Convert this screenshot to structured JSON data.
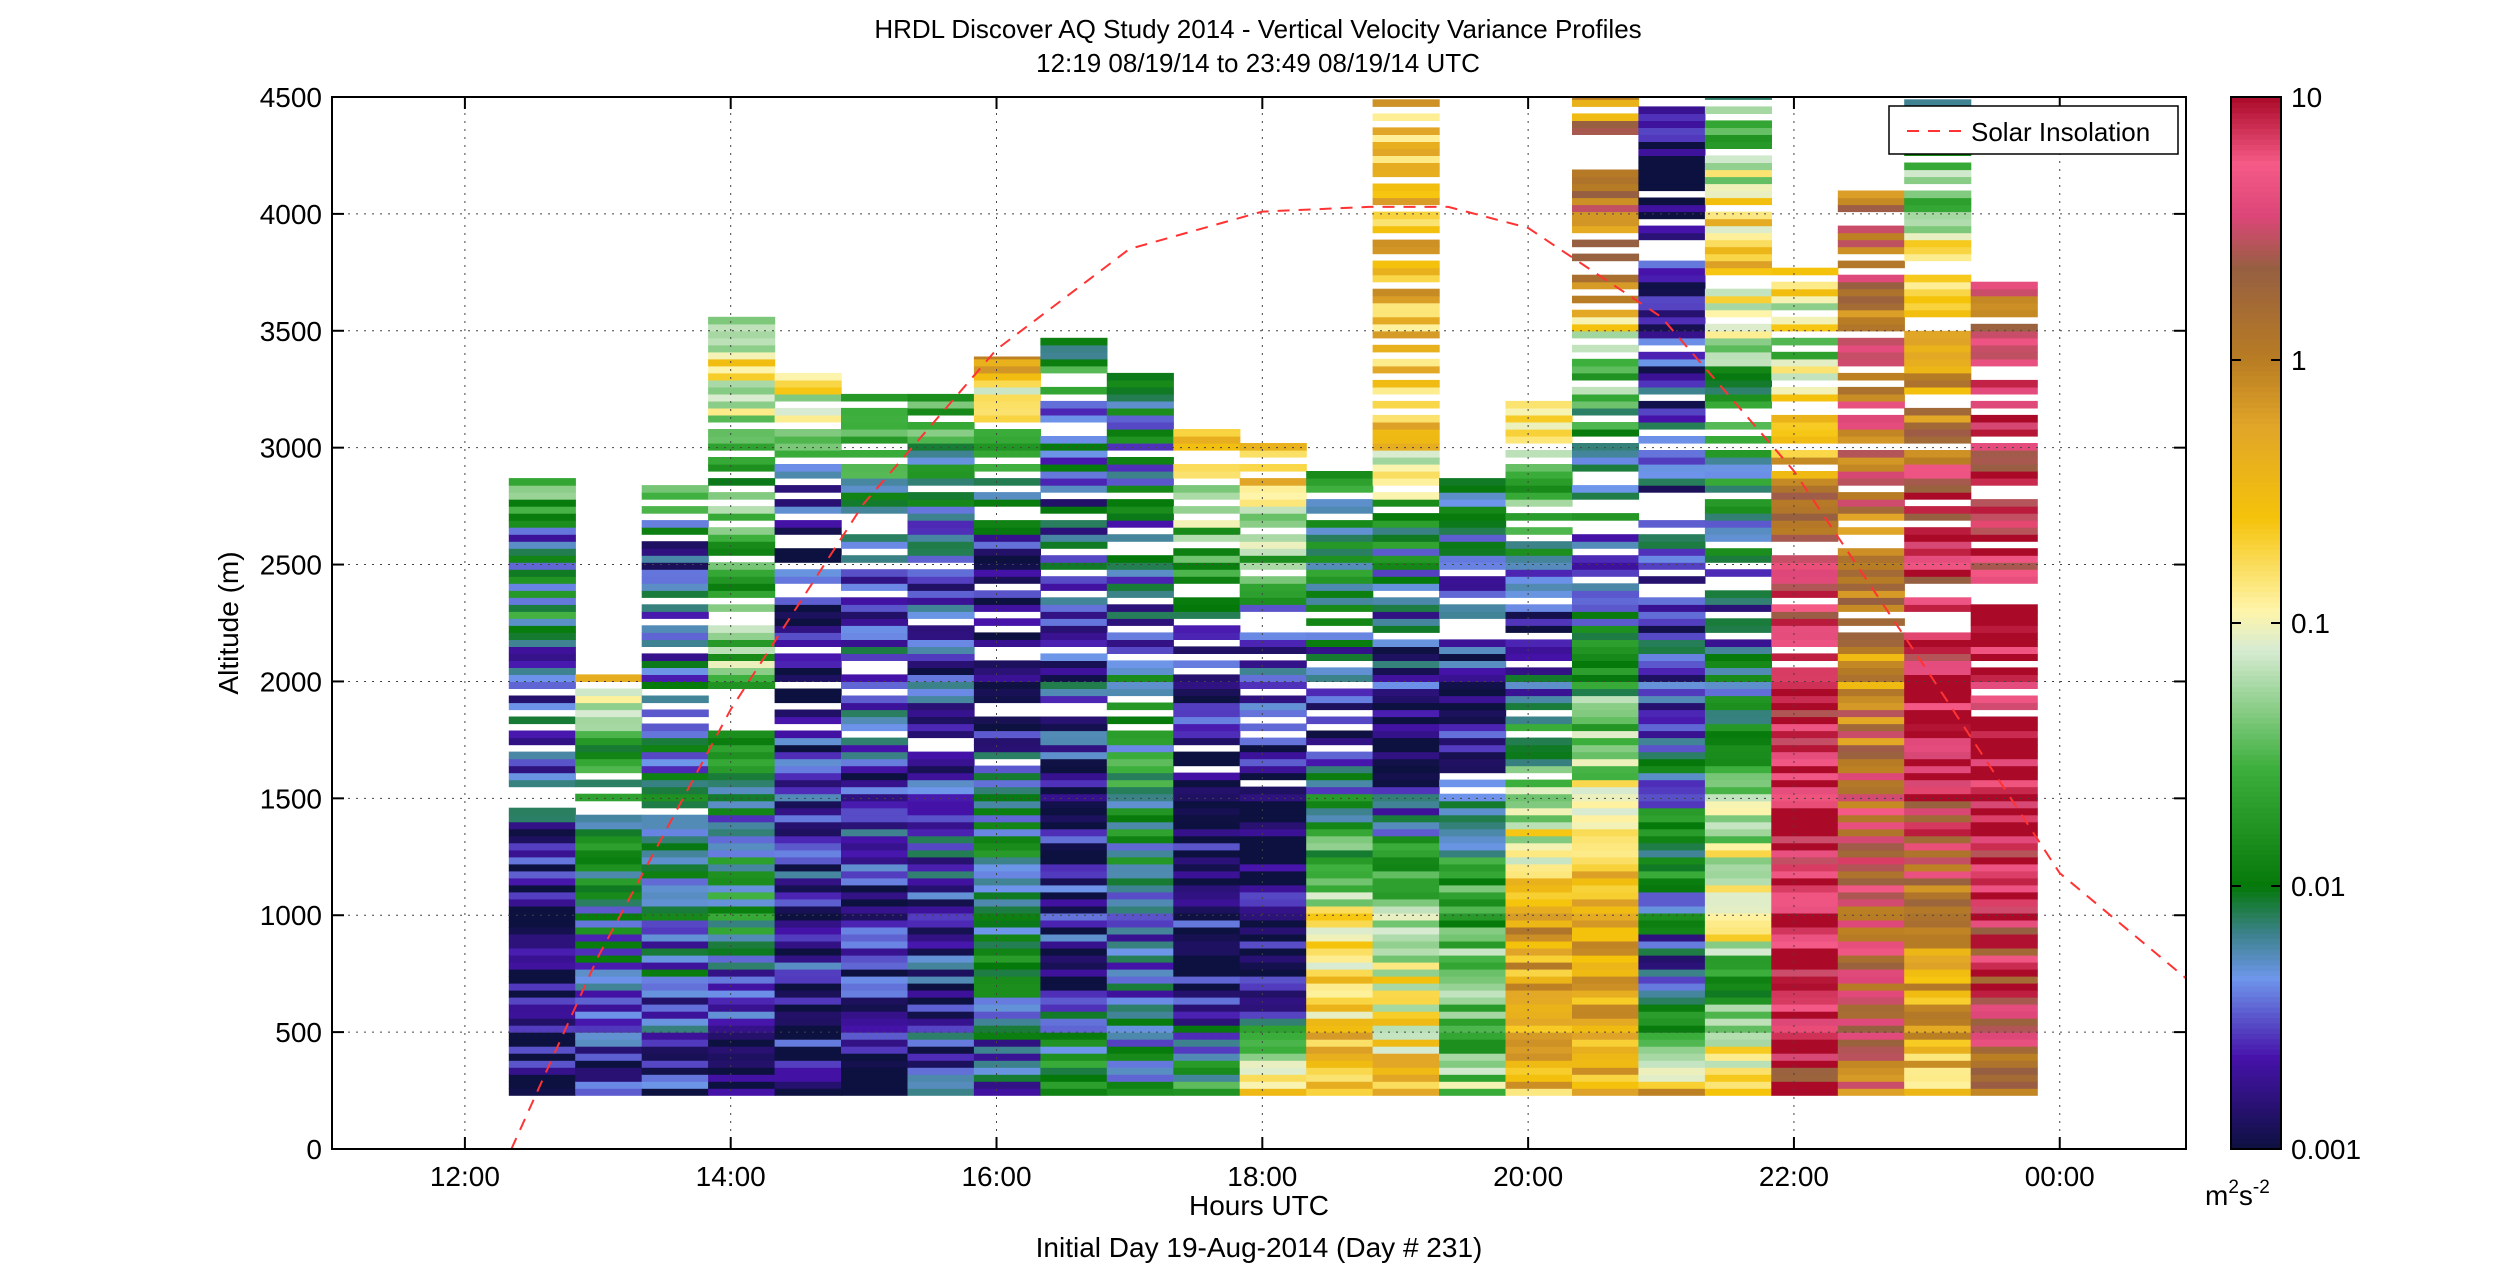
{
  "chart_data": {
    "type": "heatmap",
    "title": "HRDL Discover AQ Study 2014 - Vertical Velocity Variance Profiles",
    "subtitle": "12:19 08/19/14 to 23:49 08/19/14  UTC",
    "xlabel": "Hours UTC",
    "xlabel2": "Initial Day 19-Aug-2014 (Day # 231)",
    "ylabel": "Altitude (m)",
    "xlim": [
      11.0,
      24.95
    ],
    "ylim": [
      0,
      4500
    ],
    "grid": true,
    "x_ticks": [
      {
        "value": 12,
        "label": "12:00"
      },
      {
        "value": 14,
        "label": "14:00"
      },
      {
        "value": 16,
        "label": "16:00"
      },
      {
        "value": 18,
        "label": "18:00"
      },
      {
        "value": 20,
        "label": "20:00"
      },
      {
        "value": 22,
        "label": "22:00"
      },
      {
        "value": 24,
        "label": "00:00"
      }
    ],
    "y_ticks": [
      {
        "value": 0,
        "label": "0"
      },
      {
        "value": 500,
        "label": "500"
      },
      {
        "value": 1000,
        "label": "1000"
      },
      {
        "value": 1500,
        "label": "1500"
      },
      {
        "value": 2000,
        "label": "2000"
      },
      {
        "value": 2500,
        "label": "2500"
      },
      {
        "value": 3000,
        "label": "3000"
      },
      {
        "value": 3500,
        "label": "3500"
      },
      {
        "value": 4000,
        "label": "4000"
      },
      {
        "value": 4500,
        "label": "4500"
      }
    ],
    "colorbar": {
      "scale": "log",
      "range": [
        0.001,
        10
      ],
      "unit": "m",
      "unit_sup": "2",
      "unit_suffix": "s",
      "unit_suffix_sup": "-2",
      "ticks": [
        {
          "value": 10,
          "label": "10"
        },
        {
          "value": 1,
          "label": "1"
        },
        {
          "value": 0.1,
          "label": "0.1"
        },
        {
          "value": 0.01,
          "label": "0.01"
        },
        {
          "value": 0.001,
          "label": "0.001"
        }
      ]
    },
    "legend": {
      "position": "top-right",
      "entries": [
        {
          "name": "Solar Insolation",
          "color": "#ff3333",
          "style": "dashed"
        }
      ]
    },
    "solar_insolation": {
      "x": [
        12.35,
        13.0,
        14.0,
        15.0,
        16.0,
        17.0,
        18.0,
        18.8,
        19.4,
        20.0,
        21.0,
        22.0,
        23.0,
        24.0,
        24.95
      ],
      "y": [
        0,
        820,
        1880,
        2760,
        3420,
        3850,
        4010,
        4030,
        4030,
        3940,
        3560,
        2900,
        2050,
        1180,
        730
      ]
    },
    "profiles": [
      {
        "x": [
          12.33,
          12.83
        ],
        "top": 2870,
        "profile": [
          {
            "h": 230,
            "v": 0.0012
          },
          {
            "h": 1150,
            "v": 0.0012
          },
          {
            "h": 1500,
            "v": 0.0035
          },
          {
            "h": 2000,
            "v": 0.003
          },
          {
            "h": 2300,
            "v": 0.012
          },
          {
            "h": 2600,
            "v": 0.004
          },
          {
            "h": 2870,
            "v": 0.06
          }
        ]
      },
      {
        "x": [
          12.83,
          13.33
        ],
        "top": 2030,
        "profile": [
          {
            "h": 230,
            "v": 0.0018
          },
          {
            "h": 900,
            "v": 0.006
          },
          {
            "h": 1400,
            "v": 0.012
          },
          {
            "h": 1800,
            "v": 0.02
          },
          {
            "h": 2030,
            "v": 0.25
          }
        ]
      },
      {
        "x": [
          13.33,
          13.83
        ],
        "top": 2900,
        "profile": [
          {
            "h": 230,
            "v": 0.0015
          },
          {
            "h": 800,
            "v": 0.005
          },
          {
            "h": 1500,
            "v": 0.006
          },
          {
            "h": 2000,
            "v": 0.004
          },
          {
            "h": 2600,
            "v": 0.003
          },
          {
            "h": 2900,
            "v": 0.06
          }
        ]
      },
      {
        "x": [
          13.83,
          14.33
        ],
        "top": 3560,
        "profile": [
          {
            "h": 230,
            "v": 0.0013
          },
          {
            "h": 700,
            "v": 0.003
          },
          {
            "h": 1000,
            "v": 0.012
          },
          {
            "h": 1500,
            "v": 0.006
          },
          {
            "h": 2000,
            "v": 0.035
          },
          {
            "h": 2500,
            "v": 0.03
          },
          {
            "h": 3000,
            "v": 0.025
          },
          {
            "h": 3300,
            "v": 0.18
          },
          {
            "h": 3560,
            "v": 0.1
          }
        ]
      },
      {
        "x": [
          14.33,
          14.83
        ],
        "top": 3320,
        "profile": [
          {
            "h": 230,
            "v": 0.0012
          },
          {
            "h": 1000,
            "v": 0.0025
          },
          {
            "h": 1600,
            "v": 0.002
          },
          {
            "h": 2200,
            "v": 0.0012
          },
          {
            "h": 2800,
            "v": 0.003
          },
          {
            "h": 3320,
            "v": 0.3
          }
        ]
      },
      {
        "x": [
          14.83,
          15.33
        ],
        "top": 3230,
        "profile": [
          {
            "h": 230,
            "v": 0.0012
          },
          {
            "h": 1000,
            "v": 0.0022
          },
          {
            "h": 1800,
            "v": 0.0028
          },
          {
            "h": 2400,
            "v": 0.004
          },
          {
            "h": 3230,
            "v": 0.03
          }
        ]
      },
      {
        "x": [
          15.33,
          15.83
        ],
        "top": 3230,
        "profile": [
          {
            "h": 230,
            "v": 0.0025
          },
          {
            "h": 1000,
            "v": 0.003
          },
          {
            "h": 1800,
            "v": 0.0025
          },
          {
            "h": 2500,
            "v": 0.003
          },
          {
            "h": 3230,
            "v": 0.03
          }
        ]
      },
      {
        "x": [
          15.83,
          16.33
        ],
        "top": 3390,
        "profile": [
          {
            "h": 230,
            "v": 0.003
          },
          {
            "h": 800,
            "v": 0.008
          },
          {
            "h": 1300,
            "v": 0.012
          },
          {
            "h": 1800,
            "v": 0.002
          },
          {
            "h": 2500,
            "v": 0.0015
          },
          {
            "h": 3390,
            "v": 0.5
          }
        ]
      },
      {
        "x": [
          16.33,
          16.83
        ],
        "top": 3470,
        "profile": [
          {
            "h": 230,
            "v": 0.02
          },
          {
            "h": 700,
            "v": 0.002
          },
          {
            "h": 1500,
            "v": 0.0015
          },
          {
            "h": 2000,
            "v": 0.003
          },
          {
            "h": 3000,
            "v": 0.004
          },
          {
            "h": 3470,
            "v": 0.02
          }
        ]
      },
      {
        "x": [
          16.83,
          17.33
        ],
        "top": 3320,
        "profile": [
          {
            "h": 230,
            "v": 0.006
          },
          {
            "h": 700,
            "v": 0.004
          },
          {
            "h": 1200,
            "v": 0.006
          },
          {
            "h": 1600,
            "v": 0.015
          },
          {
            "h": 2200,
            "v": 0.004
          },
          {
            "h": 3320,
            "v": 0.008
          }
        ]
      },
      {
        "x": [
          17.33,
          17.83
        ],
        "top": 3130,
        "profile": [
          {
            "h": 230,
            "v": 0.02
          },
          {
            "h": 700,
            "v": 0.0015
          },
          {
            "h": 1500,
            "v": 0.0012
          },
          {
            "h": 2200,
            "v": 0.003
          },
          {
            "h": 3130,
            "v": 0.5
          }
        ]
      },
      {
        "x": [
          17.83,
          18.33
        ],
        "top": 3030,
        "profile": [
          {
            "h": 230,
            "v": 0.3
          },
          {
            "h": 550,
            "v": 0.015
          },
          {
            "h": 650,
            "v": 0.0012
          },
          {
            "h": 1500,
            "v": 0.0012
          },
          {
            "h": 2200,
            "v": 0.004
          },
          {
            "h": 3030,
            "v": 0.6
          }
        ]
      },
      {
        "x": [
          18.33,
          18.83
        ],
        "top": 2900,
        "profile": [
          {
            "h": 230,
            "v": 0.3
          },
          {
            "h": 900,
            "v": 0.2
          },
          {
            "h": 1300,
            "v": 0.02
          },
          {
            "h": 1800,
            "v": 0.002
          },
          {
            "h": 2500,
            "v": 0.012
          },
          {
            "h": 2900,
            "v": 0.015
          }
        ]
      },
      {
        "x": [
          18.83,
          19.33
        ],
        "top": 4500,
        "profile": [
          {
            "h": 230,
            "v": 0.3
          },
          {
            "h": 1000,
            "v": 0.06
          },
          {
            "h": 1700,
            "v": 0.0012
          },
          {
            "h": 2500,
            "v": 0.006
          },
          {
            "h": 3000,
            "v": 0.2
          },
          {
            "h": 3900,
            "v": 0.4
          },
          {
            "h": 4500,
            "v": 0.3
          }
        ]
      },
      {
        "x": [
          19.33,
          19.83
        ],
        "top": 2950,
        "profile": [
          {
            "h": 230,
            "v": 0.05
          },
          {
            "h": 800,
            "v": 0.03
          },
          {
            "h": 1200,
            "v": 0.02
          },
          {
            "h": 1700,
            "v": 0.0015
          },
          {
            "h": 2400,
            "v": 0.0025
          },
          {
            "h": 2950,
            "v": 0.012
          }
        ]
      },
      {
        "x": [
          19.83,
          20.33
        ],
        "top": 3230,
        "profile": [
          {
            "h": 230,
            "v": 0.3
          },
          {
            "h": 1000,
            "v": 0.6
          },
          {
            "h": 1500,
            "v": 0.04
          },
          {
            "h": 2200,
            "v": 0.0015
          },
          {
            "h": 3230,
            "v": 0.3
          }
        ]
      },
      {
        "x": [
          20.33,
          20.83
        ],
        "top": 4500,
        "profile": [
          {
            "h": 230,
            "v": 0.3
          },
          {
            "h": 1000,
            "v": 0.4
          },
          {
            "h": 1700,
            "v": 0.05
          },
          {
            "h": 2500,
            "v": 0.004
          },
          {
            "h": 3200,
            "v": 0.02
          },
          {
            "h": 3800,
            "v": 1.5
          },
          {
            "h": 4500,
            "v": 0.8
          }
        ]
      },
      {
        "x": [
          20.83,
          21.33
        ],
        "top": 4500,
        "profile": [
          {
            "h": 230,
            "v": 0.4
          },
          {
            "h": 700,
            "v": 0.002
          },
          {
            "h": 1200,
            "v": 0.012
          },
          {
            "h": 2000,
            "v": 0.003
          },
          {
            "h": 3000,
            "v": 0.003
          },
          {
            "h": 4400,
            "v": 0.0012
          },
          {
            "h": 4500,
            "v": 0.004
          }
        ]
      },
      {
        "x": [
          21.33,
          21.83
        ],
        "top": 4500,
        "profile": [
          {
            "h": 230,
            "v": 0.3
          },
          {
            "h": 700,
            "v": 0.02
          },
          {
            "h": 1000,
            "v": 0.15
          },
          {
            "h": 1500,
            "v": 0.05
          },
          {
            "h": 2200,
            "v": 0.003
          },
          {
            "h": 3300,
            "v": 0.02
          },
          {
            "h": 3800,
            "v": 0.4
          },
          {
            "h": 4500,
            "v": 0.02
          }
        ]
      },
      {
        "x": [
          21.83,
          22.33
        ],
        "top": 3770,
        "profile": [
          {
            "h": 230,
            "v": 5
          },
          {
            "h": 1500,
            "v": 9
          },
          {
            "h": 2500,
            "v": 4
          },
          {
            "h": 3000,
            "v": 0.3
          },
          {
            "h": 3400,
            "v": 0.05
          },
          {
            "h": 3770,
            "v": 0.3
          }
        ]
      },
      {
        "x": [
          22.33,
          22.83
        ],
        "top": 4110,
        "profile": [
          {
            "h": 230,
            "v": 1.5
          },
          {
            "h": 1200,
            "v": 3
          },
          {
            "h": 2000,
            "v": 0.8
          },
          {
            "h": 3000,
            "v": 2
          },
          {
            "h": 3500,
            "v": 1.5
          },
          {
            "h": 4110,
            "v": 1.2
          }
        ]
      },
      {
        "x": [
          22.83,
          23.33
        ],
        "top": 4500,
        "profile": [
          {
            "h": 230,
            "v": 0.3
          },
          {
            "h": 1000,
            "v": 0.8
          },
          {
            "h": 1600,
            "v": 9
          },
          {
            "h": 2800,
            "v": 4
          },
          {
            "h": 3500,
            "v": 0.2
          },
          {
            "h": 4100,
            "v": 0.05
          },
          {
            "h": 4500,
            "v": 0.01
          }
        ]
      },
      {
        "x": [
          23.33,
          23.83
        ],
        "top": 3710,
        "profile": [
          {
            "h": 230,
            "v": 1.5
          },
          {
            "h": 700,
            "v": 4
          },
          {
            "h": 1500,
            "v": 9
          },
          {
            "h": 3000,
            "v": 6
          },
          {
            "h": 3710,
            "v": 1.5
          }
        ]
      }
    ]
  }
}
